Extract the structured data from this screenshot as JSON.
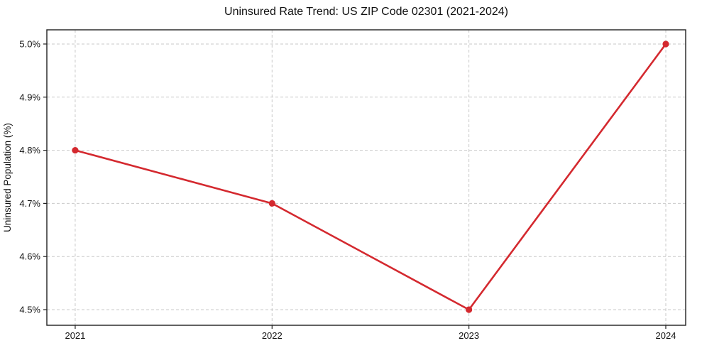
{
  "chart_data": {
    "type": "line",
    "title": "Uninsured Rate Trend: US ZIP Code 02301 (2021-2024)",
    "xlabel": "",
    "ylabel": "Uninsured Population (%)",
    "x": [
      2021,
      2022,
      2023,
      2024
    ],
    "x_tick_labels": [
      "2021",
      "2022",
      "2023",
      "2024"
    ],
    "values": [
      4.8,
      4.7,
      4.5,
      5.0
    ],
    "y_ticks": [
      4.5,
      4.6,
      4.7,
      4.8,
      4.9,
      5.0
    ],
    "y_tick_labels": [
      "4.5%",
      "4.6%",
      "4.7%",
      "4.8%",
      "4.9%",
      "5.0%"
    ],
    "xlim": [
      2020.856,
      2024.101
    ],
    "ylim": [
      4.4706,
      5.0267
    ],
    "grid": true,
    "grid_style": "dashed",
    "legend": "none",
    "marker": "circle",
    "colors": {
      "line": "#d4292f",
      "marker": "#d4292f",
      "grid": "#c9c9c9",
      "spine": "#1f1f1f",
      "text": "#111111"
    }
  }
}
